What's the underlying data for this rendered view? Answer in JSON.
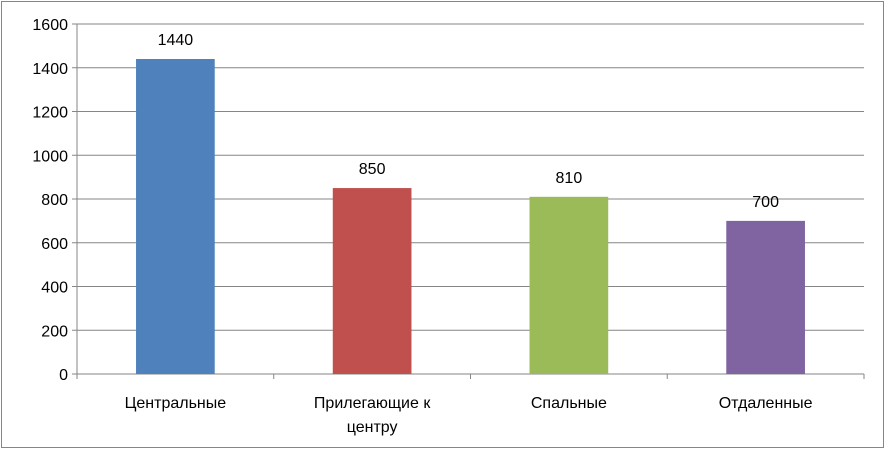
{
  "chart_data": {
    "type": "bar",
    "title": "",
    "xlabel": "",
    "ylabel": "",
    "ylim": [
      0,
      1600
    ],
    "yticks": [
      0,
      200,
      400,
      600,
      800,
      1000,
      1200,
      1400,
      1600
    ],
    "grid": true,
    "legend": "none",
    "categories": [
      [
        "Центральные"
      ],
      [
        "Прилегающие к",
        "центру"
      ],
      [
        "Спальные"
      ],
      [
        "Отдаленные"
      ]
    ],
    "values": [
      1440,
      850,
      810,
      700
    ],
    "colors": [
      "#4f81bd",
      "#c0504d",
      "#9bbb59",
      "#8064a2"
    ],
    "data_labels": [
      "1440",
      "850",
      "810",
      "700"
    ]
  }
}
